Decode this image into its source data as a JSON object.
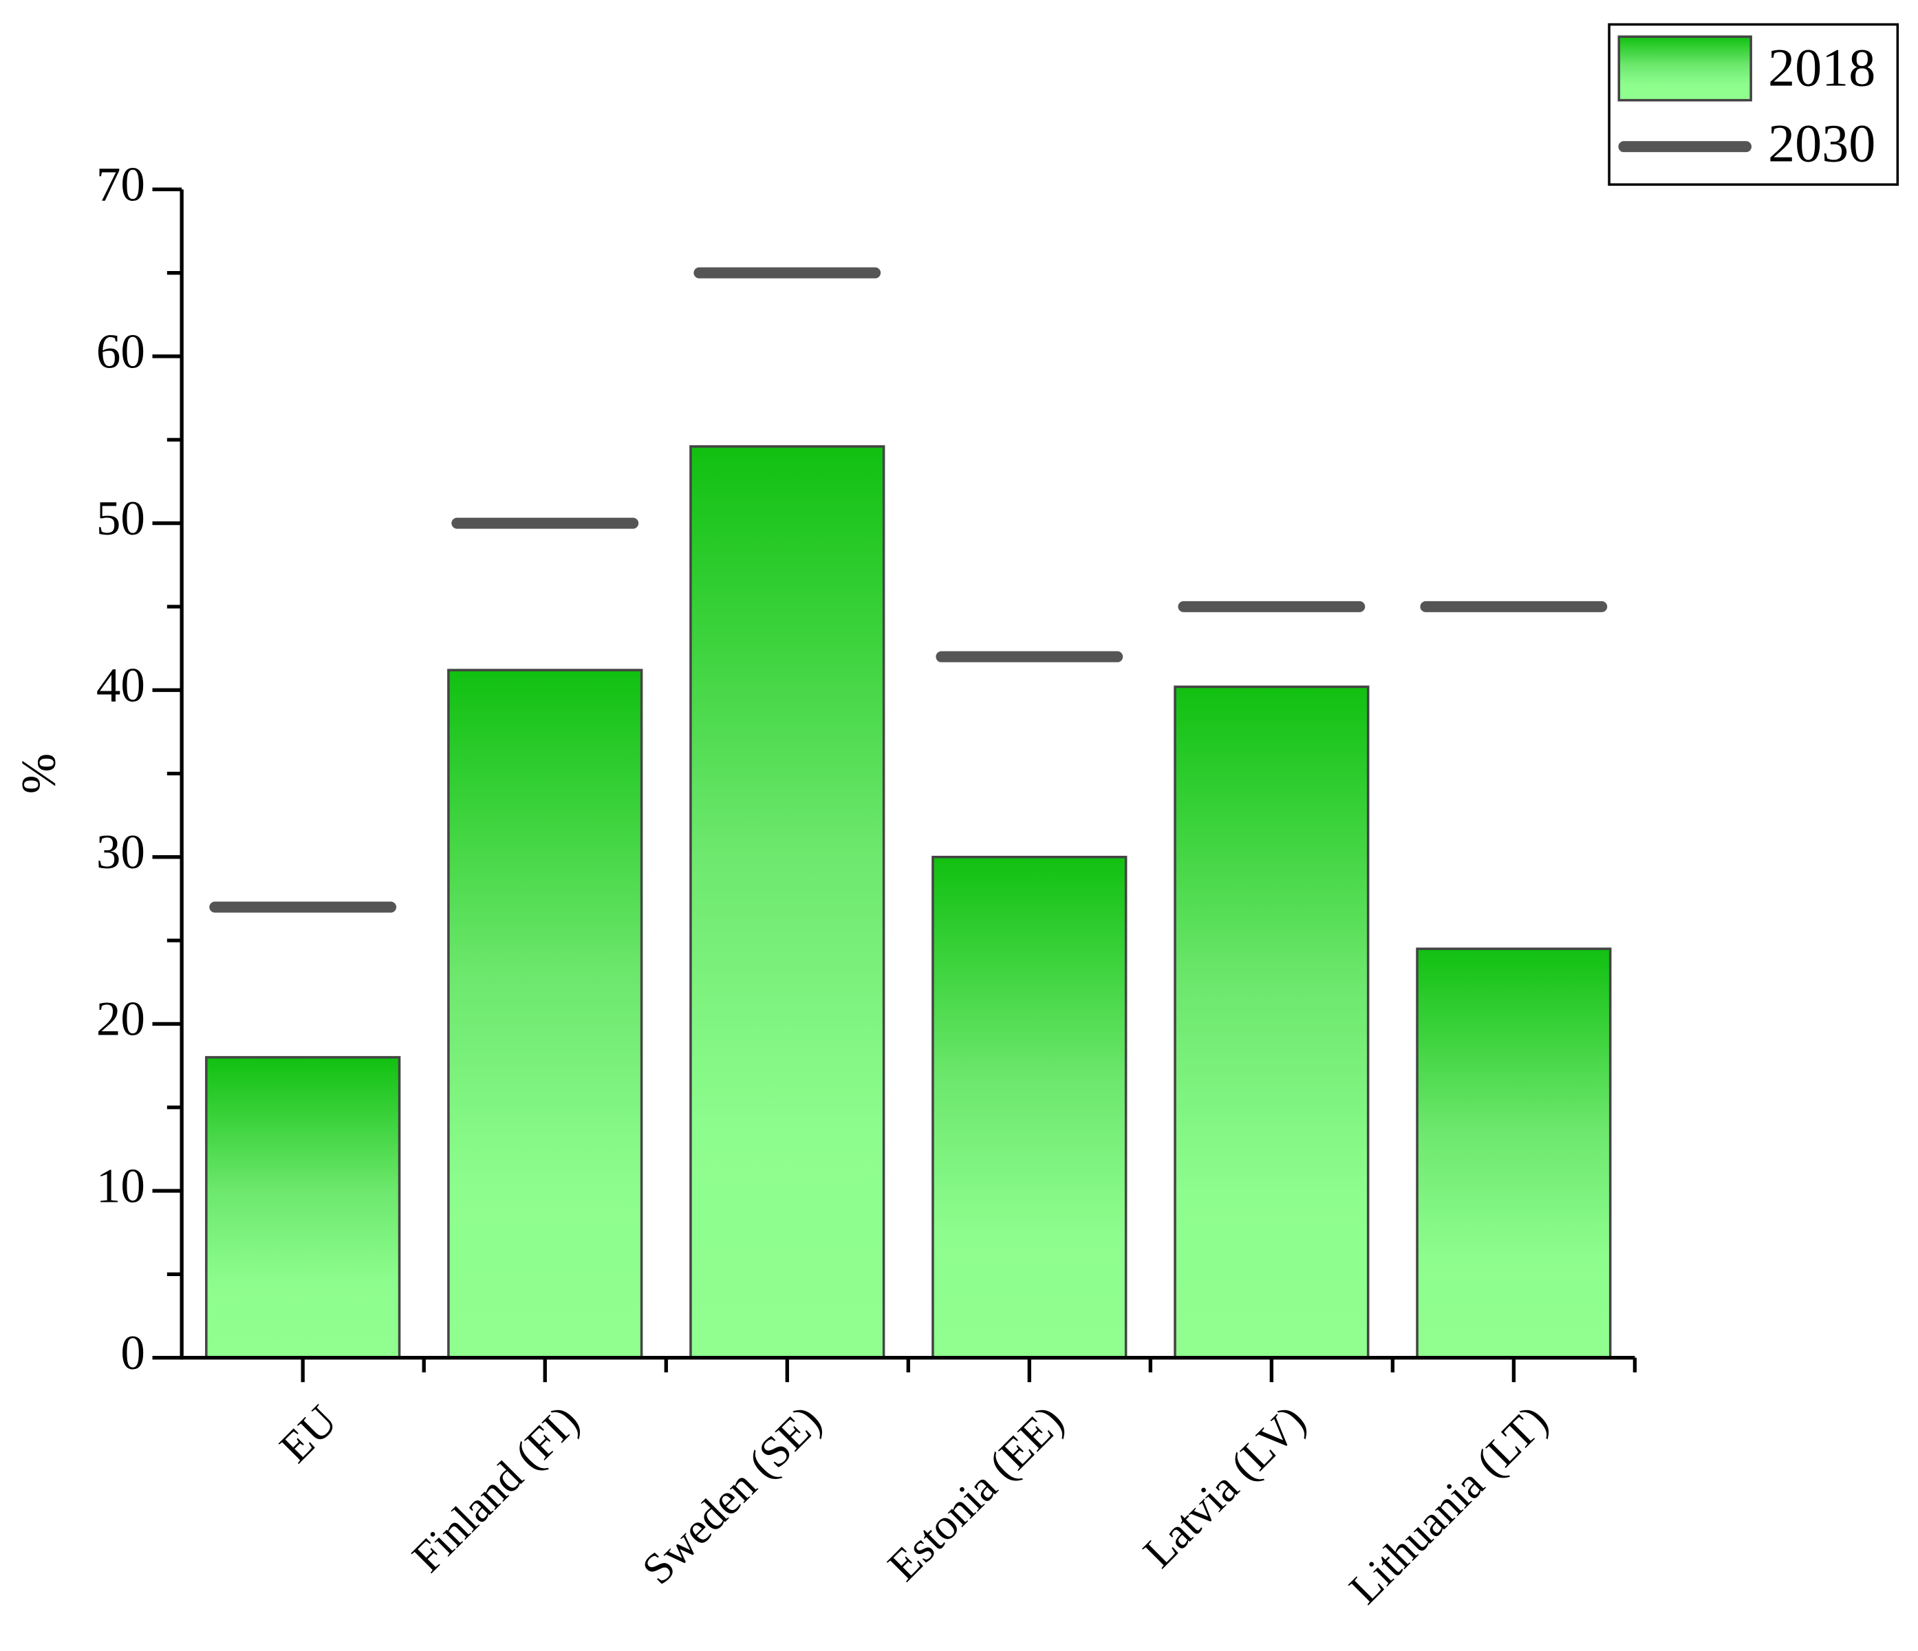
{
  "chart_data": {
    "type": "bar",
    "y_label": "%",
    "categories": [
      "EU",
      "Finland (FI)",
      "Sweden (SE)",
      "Estonia (EE)",
      "Latvia (LV)",
      "Lithuania (LT)"
    ],
    "series": [
      {
        "name": "2018",
        "type": "bar",
        "color": "#11c011",
        "values": [
          18,
          41.2,
          54.6,
          30,
          40.2,
          24.5
        ]
      },
      {
        "name": "2030",
        "type": "dash",
        "color": "#555555",
        "values": [
          27,
          50,
          65,
          42,
          45,
          45
        ]
      }
    ],
    "ylim": [
      0,
      70
    ],
    "yticks": [
      0,
      10,
      20,
      30,
      40,
      50,
      60,
      70
    ],
    "legend": "top-right"
  }
}
